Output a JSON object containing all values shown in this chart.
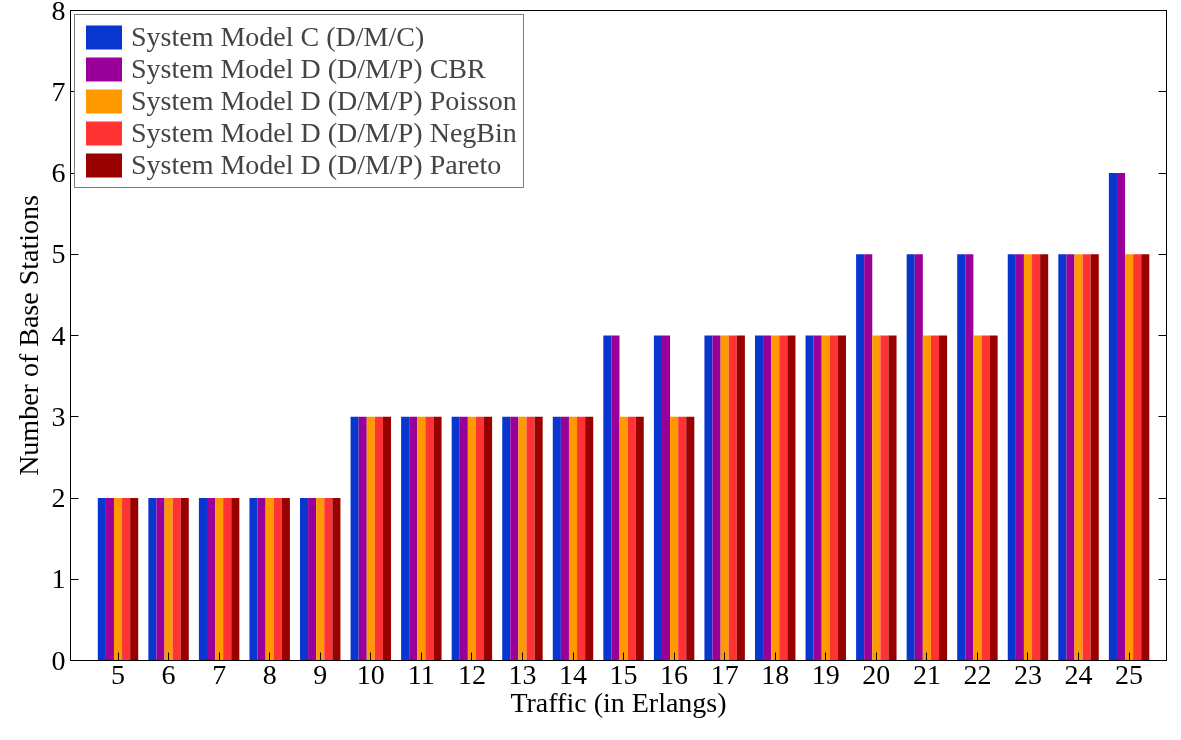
{
  "chart_data": {
    "type": "bar",
    "xlabel": "Traffic (in Erlangs)",
    "ylabel": "Number of Base Stations",
    "categories": [
      "5",
      "6",
      "7",
      "8",
      "9",
      "10",
      "11",
      "12",
      "13",
      "14",
      "15",
      "16",
      "17",
      "18",
      "19",
      "20",
      "21",
      "22",
      "23",
      "24",
      "25"
    ],
    "series": [
      {
        "name": "System Model C (D/M/C)",
        "color": "#0a36d0",
        "values": [
          2,
          2,
          2,
          2,
          2,
          3,
          3,
          3,
          3,
          3,
          4,
          4,
          4,
          4,
          4,
          5,
          5,
          5,
          5,
          5,
          6
        ]
      },
      {
        "name": "System Model D (D/M/P) CBR",
        "color": "#990099",
        "values": [
          2,
          2,
          2,
          2,
          2,
          3,
          3,
          3,
          3,
          3,
          4,
          4,
          4,
          4,
          4,
          5,
          5,
          5,
          5,
          5,
          6
        ]
      },
      {
        "name": "System Model D (D/M/P) Poisson",
        "color": "#ff9900",
        "values": [
          2,
          2,
          2,
          2,
          2,
          3,
          3,
          3,
          3,
          3,
          3,
          3,
          4,
          4,
          4,
          4,
          4,
          4,
          5,
          5,
          5
        ]
      },
      {
        "name": "System Model D (D/M/P) NegBin",
        "color": "#ff3333",
        "values": [
          2,
          2,
          2,
          2,
          2,
          3,
          3,
          3,
          3,
          3,
          3,
          3,
          4,
          4,
          4,
          4,
          4,
          4,
          5,
          5,
          5
        ]
      },
      {
        "name": "System Model D (D/M/P) Pareto",
        "color": "#990000",
        "values": [
          2,
          2,
          2,
          2,
          2,
          3,
          3,
          3,
          3,
          3,
          3,
          3,
          4,
          4,
          4,
          4,
          4,
          4,
          5,
          5,
          5
        ]
      }
    ],
    "ylim": [
      0,
      8
    ],
    "yticks": [
      0,
      1,
      2,
      3,
      4,
      5,
      6,
      7,
      8
    ],
    "grid": false,
    "legend": "top left"
  }
}
